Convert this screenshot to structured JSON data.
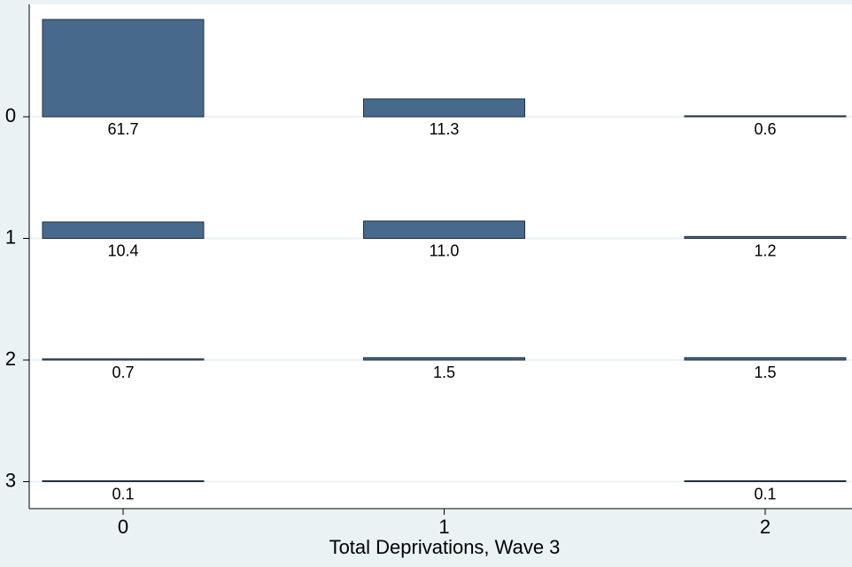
{
  "chart_data": {
    "type": "tabplot",
    "x_categories": [
      "0",
      "1",
      "2"
    ],
    "y_categories": [
      "0",
      "1",
      "2",
      "3"
    ],
    "xlabel": "Total Deprivations, Wave 3",
    "values": [
      [
        61.7,
        11.3,
        0.6
      ],
      [
        10.4,
        11.0,
        1.2
      ],
      [
        0.7,
        1.5,
        1.5
      ],
      [
        0.1,
        null,
        0.1
      ]
    ],
    "value_labels": [
      [
        "61.7",
        "11.3",
        "0.6"
      ],
      [
        "10.4",
        "11.0",
        "1.2"
      ],
      [
        "0.7",
        "1.5",
        "1.5"
      ],
      [
        "0.1",
        null,
        "0.1"
      ]
    ],
    "color": "#476a8c",
    "grid": true
  }
}
